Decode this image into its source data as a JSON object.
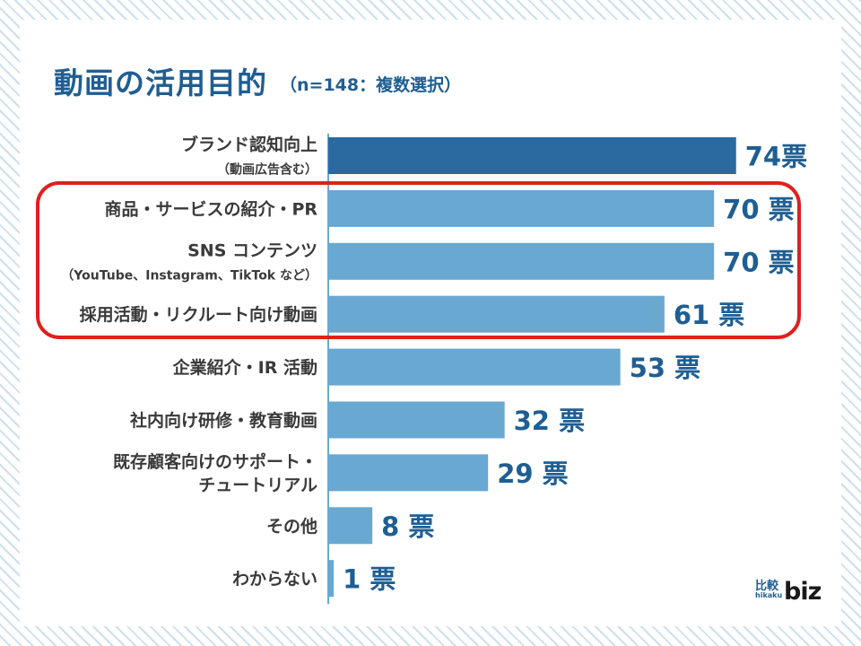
{
  "header": {
    "title": "動画の活用目的",
    "subtitle": "（n=148：複数選択）"
  },
  "chart_data": {
    "type": "bar",
    "orientation": "horizontal",
    "categories": [
      [
        "ブランド認知向上",
        "（動画広告含む）"
      ],
      [
        "商品・サービスの紹介・PR"
      ],
      [
        "SNS コンテンツ",
        "（YouTube、Instagram、TikTok など）"
      ],
      [
        "採用活動・リクルート向け動画"
      ],
      [
        "企業紹介・IR 活動"
      ],
      [
        "社内向け研修・教育動画"
      ],
      [
        "既存顧客向けのサポート・",
        "チュートリアル"
      ],
      [
        "その他"
      ],
      [
        "わからない"
      ]
    ],
    "values": [
      74,
      70,
      70,
      61,
      53,
      32,
      29,
      8,
      1
    ],
    "value_labels": [
      "74票",
      "70 票",
      "70 票",
      "61 票",
      "53 票",
      "32 票",
      "29 票",
      "8 票",
      "1 票"
    ],
    "highlighted": [
      false,
      true,
      true,
      true,
      false,
      false,
      false,
      false,
      false
    ],
    "colors": {
      "top_bar": "#2a6aa1",
      "bar": "#69a8d1",
      "value_text": "#1f5e93",
      "highlight_box": "#e01f1f",
      "axis": "#69a8d1"
    }
  },
  "logo": {
    "jp": "比較",
    "en": "hikaku",
    "biz": "biz"
  }
}
